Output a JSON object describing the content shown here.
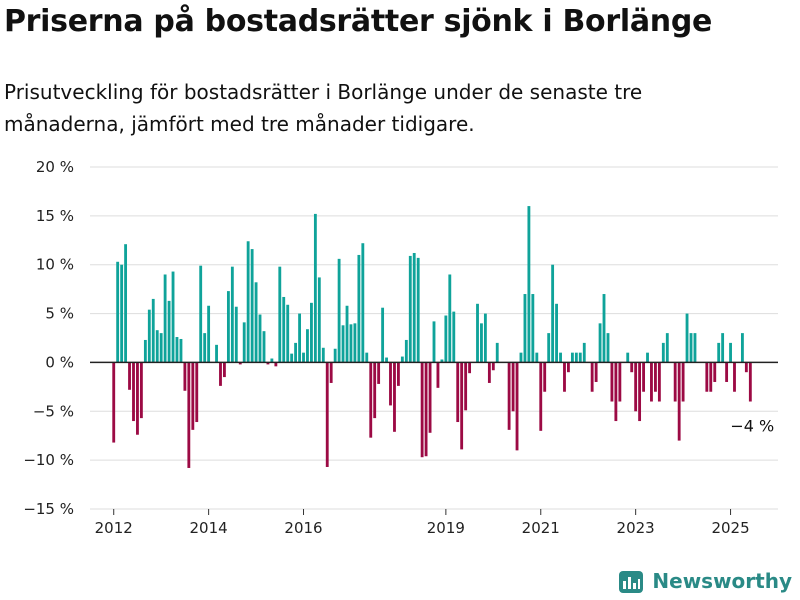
{
  "header": {
    "title": "Priserna på bostadsrätter sjönk i Borlänge",
    "subtitle": "Prisutveckling för bostadsrätter i Borlänge under de senaste tre månaderna, jämfört med tre månader tidigare."
  },
  "footer": {
    "brand": "Newsworthy",
    "icon": "newsworthy-logo-icon"
  },
  "colors": {
    "positive": "#0fa39a",
    "negative": "#9c0a44",
    "grid": "#dddddd",
    "zero": "#222222"
  },
  "chart_data": {
    "type": "bar",
    "ylim": [
      -15,
      20
    ],
    "y_ticks": [
      20,
      15,
      10,
      5,
      0,
      -5,
      -10,
      -15
    ],
    "y_tick_labels": [
      "20 %",
      "15 %",
      "10 %",
      "5 %",
      "0 %",
      "−5 %",
      "−10 %",
      "−15 %"
    ],
    "x_ticks": [
      {
        "label": "2012",
        "x": 2012.0
      },
      {
        "label": "2014",
        "x": 2014.0
      },
      {
        "label": "2016",
        "x": 2016.0
      },
      {
        "label": "2019",
        "x": 2019.0
      },
      {
        "label": "2021",
        "x": 2021.0
      },
      {
        "label": "2023",
        "x": 2023.0
      },
      {
        "label": "2025",
        "x": 2025.0
      }
    ],
    "x_range": [
      2011.5,
      2026.0
    ],
    "grid": true,
    "annotation": {
      "label": "−4 %",
      "value": -4
    },
    "x": [
      2012.0,
      2012.083,
      2012.167,
      2012.25,
      2012.333,
      2012.417,
      2012.5,
      2012.583,
      2012.667,
      2012.75,
      2012.833,
      2012.917,
      2013.0,
      2013.083,
      2013.167,
      2013.25,
      2013.333,
      2013.417,
      2013.5,
      2013.583,
      2013.667,
      2013.75,
      2013.833,
      2013.917,
      2014.0,
      2014.083,
      2014.167,
      2014.25,
      2014.333,
      2014.417,
      2014.5,
      2014.583,
      2014.667,
      2014.75,
      2014.833,
      2014.917,
      2015.0,
      2015.083,
      2015.167,
      2015.25,
      2015.333,
      2015.417,
      2015.5,
      2015.583,
      2015.667,
      2015.75,
      2015.833,
      2015.917,
      2016.0,
      2016.083,
      2016.167,
      2016.25,
      2016.333,
      2016.417,
      2016.5,
      2016.583,
      2016.667,
      2016.75,
      2016.833,
      2016.917,
      2017.0,
      2017.083,
      2017.167,
      2017.25,
      2017.333,
      2017.417,
      2017.5,
      2017.583,
      2017.667,
      2017.75,
      2017.833,
      2017.917,
      2018.0,
      2018.083,
      2018.167,
      2018.25,
      2018.333,
      2018.417,
      2018.5,
      2018.583,
      2018.667,
      2018.75,
      2018.833,
      2018.917,
      2019.0,
      2019.083,
      2019.167,
      2019.25,
      2019.333,
      2019.417,
      2019.5,
      2019.583,
      2019.667,
      2019.75,
      2019.833,
      2019.917,
      2020.0,
      2020.083,
      2020.167,
      2020.25,
      2020.333,
      2020.417,
      2020.5,
      2020.583,
      2020.667,
      2020.75,
      2020.833,
      2020.917,
      2021.0,
      2021.083,
      2021.167,
      2021.25,
      2021.333,
      2021.417,
      2021.5,
      2021.583,
      2021.667,
      2021.75,
      2021.833,
      2021.917,
      2022.0,
      2022.083,
      2022.167,
      2022.25,
      2022.333,
      2022.417,
      2022.5,
      2022.583,
      2022.667,
      2022.75,
      2022.833,
      2022.917,
      2023.0,
      2023.083,
      2023.167,
      2023.25,
      2023.333,
      2023.417,
      2023.5,
      2023.583,
      2023.667,
      2023.75,
      2023.833,
      2023.917,
      2024.0,
      2024.083,
      2024.167,
      2024.25,
      2024.333,
      2024.417,
      2024.5,
      2024.583,
      2024.667,
      2024.75,
      2024.833,
      2024.917,
      2025.0,
      2025.083,
      2025.167,
      2025.25,
      2025.333,
      2025.417
    ],
    "values": [
      -8.2,
      10.3,
      10.0,
      12.1,
      -2.8,
      -6.0,
      -7.4,
      -5.7,
      2.3,
      5.4,
      6.5,
      3.3,
      3.0,
      9.0,
      6.3,
      9.3,
      2.6,
      2.4,
      -2.9,
      -10.8,
      -6.9,
      -6.1,
      9.9,
      3.0,
      5.8,
      0,
      1.8,
      -2.4,
      -1.5,
      7.3,
      9.8,
      5.7,
      -0.2,
      4.1,
      12.4,
      11.6,
      8.2,
      4.9,
      3.2,
      -0.2,
      0.4,
      -0.4,
      9.8,
      6.7,
      5.9,
      0.9,
      2.0,
      5.0,
      1.0,
      3.4,
      6.1,
      15.2,
      8.7,
      1.5,
      -10.7,
      -2.1,
      1.4,
      10.6,
      3.8,
      5.8,
      3.9,
      4.0,
      11.0,
      12.2,
      1.0,
      -7.7,
      -5.7,
      -2.2,
      5.6,
      0.5,
      -4.4,
      -7.1,
      -2.4,
      0.6,
      2.3,
      10.9,
      11.2,
      10.7,
      -9.7,
      -9.6,
      -7.2,
      4.2,
      -2.6,
      0.3,
      4.8,
      9.0,
      5.2,
      -6.1,
      -8.9,
      -4.9,
      -1.1,
      0,
      6.0,
      4.0,
      5.0,
      -2.1,
      -0.8,
      2.0,
      0,
      0,
      -6.9,
      -5.0,
      -9.0,
      1.0,
      7.0,
      16.0,
      7.0,
      1.0,
      -7.0,
      -3.0,
      3.0,
      10.0,
      6.0,
      1.0,
      -3.0,
      -1.0,
      1.0,
      1.0,
      1.0,
      2.0,
      0,
      -3.0,
      -2.0,
      4.0,
      7.0,
      3.0,
      -4.0,
      -6.0,
      -4.0,
      0,
      1.0,
      -1.0,
      -5.0,
      -6.0,
      -3.0,
      1.0,
      -4.0,
      -3.0,
      -4.0,
      2.0,
      3.0,
      0,
      -4.0,
      -8.0,
      -4.0,
      5.0,
      3.0,
      3.0,
      0,
      0,
      -3.0,
      -3.0,
      -2.0,
      2.0,
      3.0,
      -2.0,
      2.0,
      -3.0,
      0,
      3.0,
      -1.0,
      -4.0
    ]
  }
}
